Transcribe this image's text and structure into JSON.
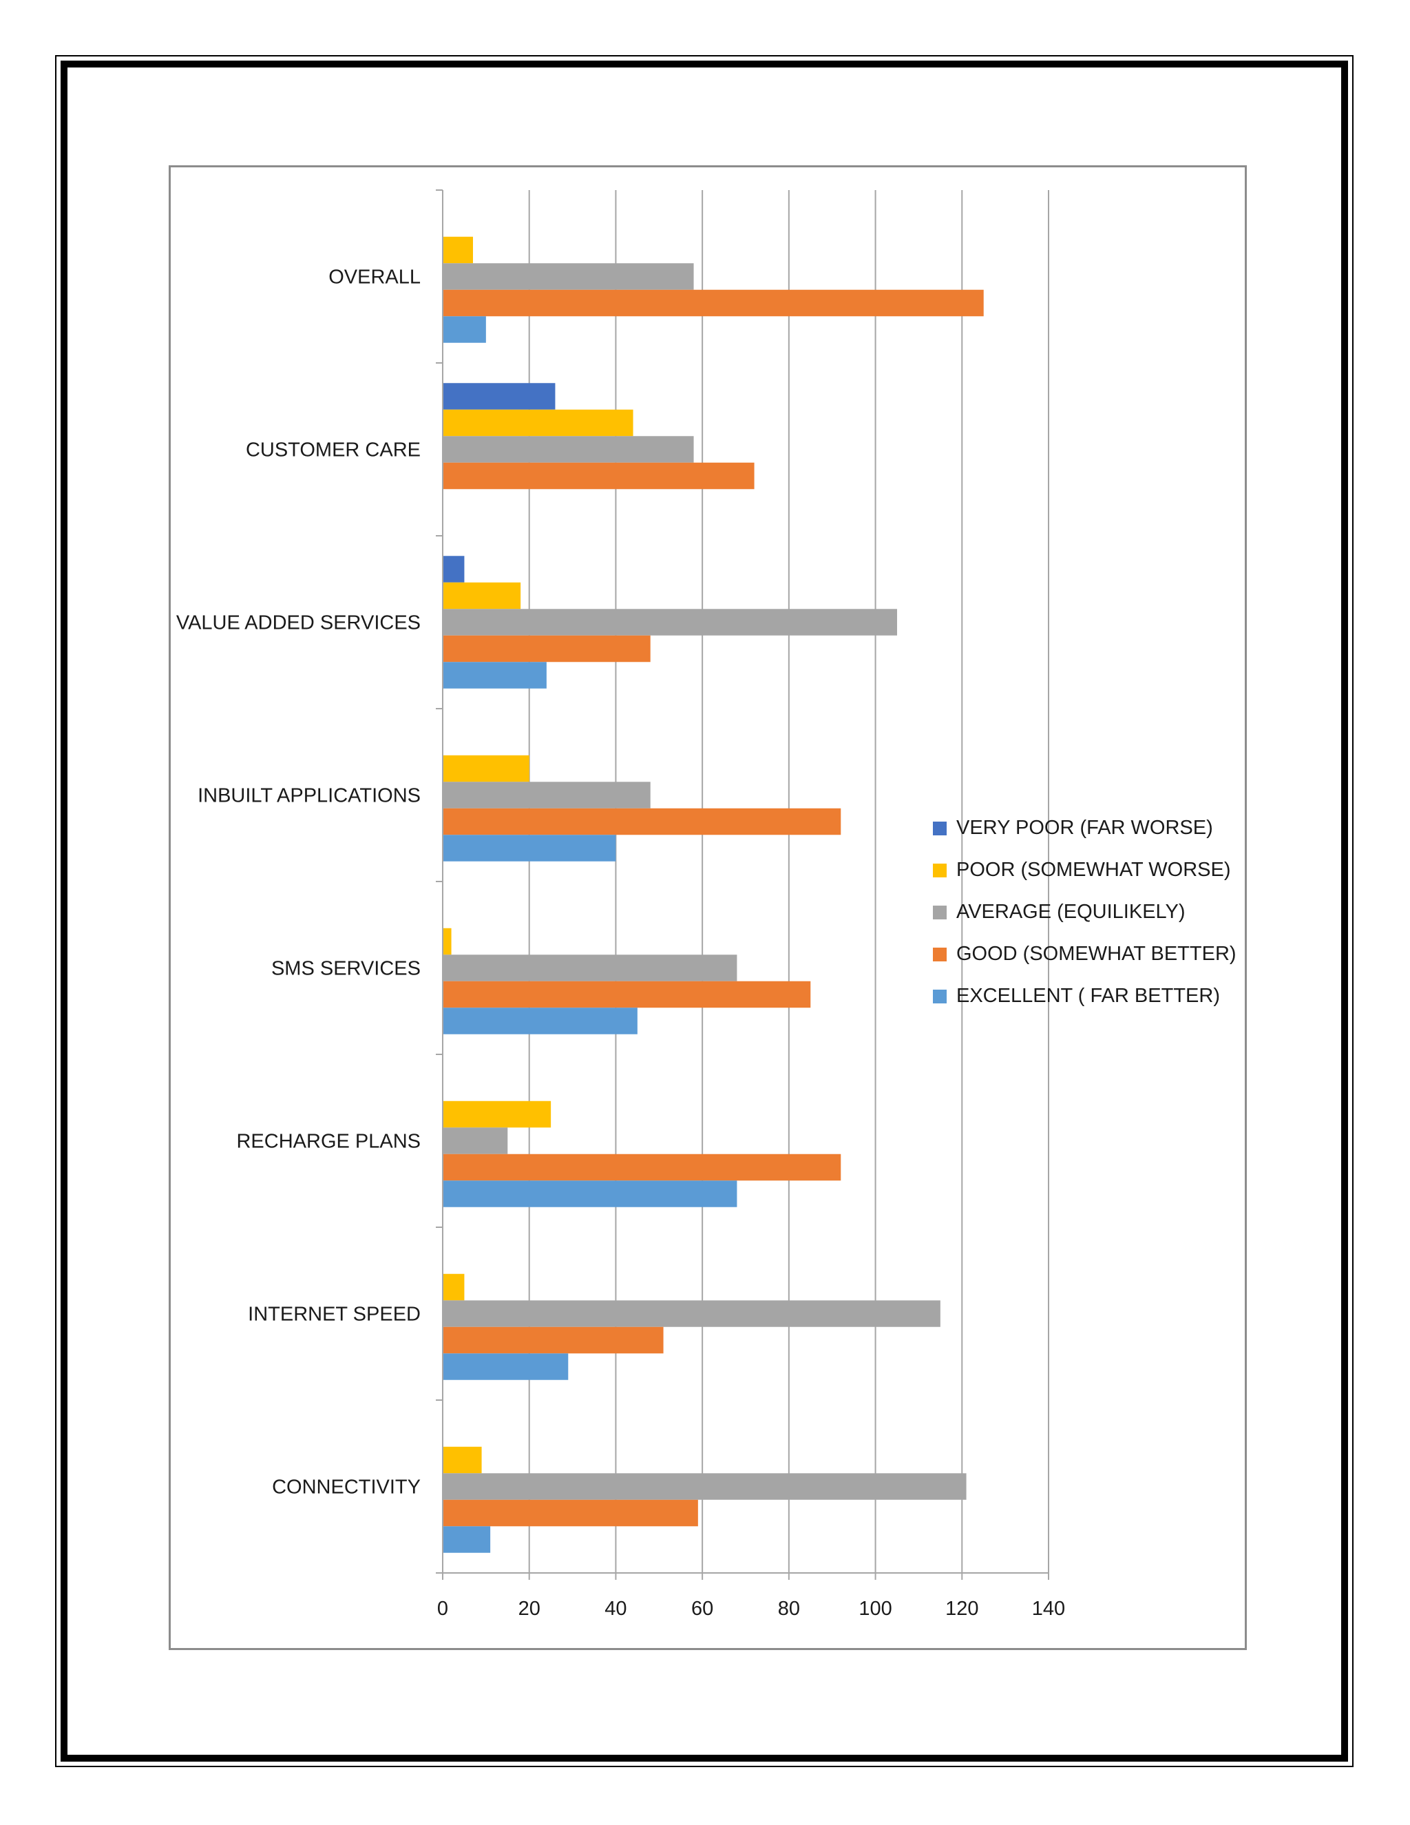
{
  "chart_data": {
    "type": "bar",
    "orientation": "horizontal",
    "title": "",
    "xlabel": "",
    "ylabel": "",
    "xlim": [
      0,
      140
    ],
    "x_ticks": [
      0,
      20,
      40,
      60,
      80,
      100,
      120,
      140
    ],
    "grid": "vertical",
    "legend_position": "right",
    "categories": [
      "OVERALL",
      "CUSTOMER CARE",
      "VALUE ADDED SERVICES",
      "INBUILT APPLICATIONS",
      "SMS SERVICES",
      "RECHARGE PLANS",
      "INTERNET SPEED",
      "CONNECTIVITY"
    ],
    "series": [
      {
        "name": "VERY POOR (FAR WORSE)",
        "color": "#4472c4",
        "values": [
          0,
          26,
          5,
          0,
          0,
          0,
          0,
          0
        ]
      },
      {
        "name": "POOR (SOMEWHAT WORSE)",
        "color": "#ffc000",
        "values": [
          7,
          44,
          18,
          20,
          2,
          25,
          5,
          9
        ]
      },
      {
        "name": "AVERAGE (EQUILIKELY)",
        "color": "#a5a5a5",
        "values": [
          58,
          58,
          105,
          48,
          68,
          15,
          115,
          121
        ]
      },
      {
        "name": "GOOD (SOMEWHAT BETTER)",
        "color": "#ed7d31",
        "values": [
          125,
          72,
          48,
          92,
          85,
          92,
          51,
          59
        ]
      },
      {
        "name": "EXCELLENT ( FAR BETTER)",
        "color": "#5b9bd5",
        "values": [
          10,
          0,
          24,
          40,
          45,
          68,
          29,
          11
        ]
      }
    ]
  }
}
